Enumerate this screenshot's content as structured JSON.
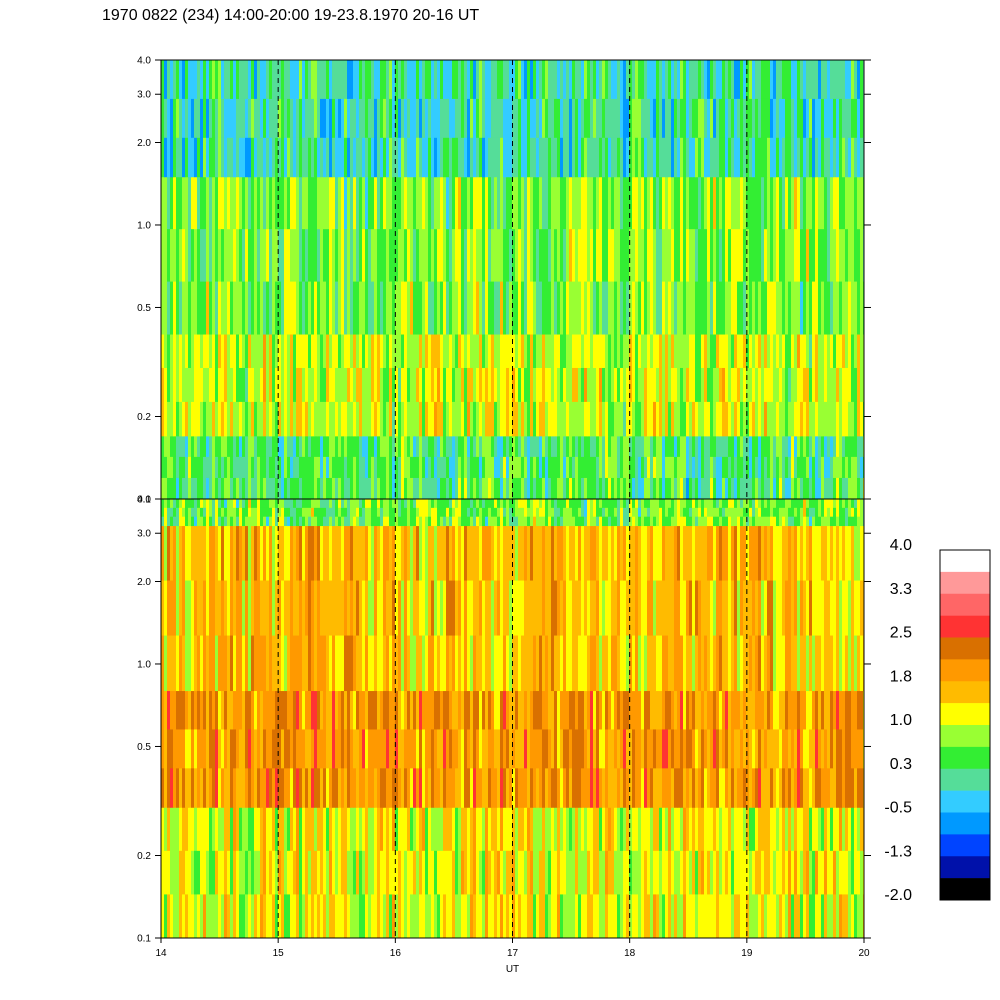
{
  "title": "1970 0822 (234) 14:00-20:00 19-23.8.1970  20-16 UT",
  "chart_data": {
    "type": "heatmap",
    "x_ticks": [
      "14",
      "15",
      "16",
      "17",
      "18",
      "19",
      "20"
    ],
    "x_range": [
      14,
      20
    ],
    "xlabel": "UT",
    "y_scale": "log",
    "y_range": [
      0.1,
      4.0
    ],
    "y_ticks": [
      "0.1",
      "0.2",
      "0.5",
      "1.0",
      "2.0",
      "3.0",
      "4.0"
    ],
    "y_tick_values": [
      0.1,
      0.2,
      0.5,
      1.0,
      2.0,
      3.0,
      4.0
    ],
    "dashed_gridlines_x": [
      15,
      16,
      17,
      18,
      19
    ],
    "panels": [
      {
        "name": "upper",
        "description_bands": [
          {
            "y_from": 0.1,
            "y_to": 0.17,
            "level": 0.3
          },
          {
            "y_from": 0.17,
            "y_to": 0.4,
            "level": 1.0
          },
          {
            "y_from": 0.4,
            "y_to": 1.5,
            "level": 0.6
          },
          {
            "y_from": 1.5,
            "y_to": 4.0,
            "level": 0.0
          }
        ]
      },
      {
        "name": "lower",
        "description_bands": [
          {
            "y_from": 0.1,
            "y_to": 0.3,
            "level": 1.2
          },
          {
            "y_from": 0.3,
            "y_to": 0.8,
            "level": 2.0
          },
          {
            "y_from": 0.8,
            "y_to": 3.2,
            "level": 1.6
          },
          {
            "y_from": 3.2,
            "y_to": 4.0,
            "level": 0.6
          }
        ]
      }
    ],
    "colorbar": {
      "labels": [
        "4.0",
        "3.3",
        "2.5",
        "1.8",
        "1.0",
        "0.3",
        "-0.5",
        "-1.3",
        "-2.0"
      ],
      "colors": [
        "#ffffff",
        "#ff9999",
        "#ff6666",
        "#ff3333",
        "#d97000",
        "#ff9900",
        "#ffbb00",
        "#ffff00",
        "#99ff33",
        "#33ee33",
        "#55dd99",
        "#33ccff",
        "#0099ff",
        "#0044ff",
        "#0011aa",
        "#000000"
      ]
    }
  }
}
